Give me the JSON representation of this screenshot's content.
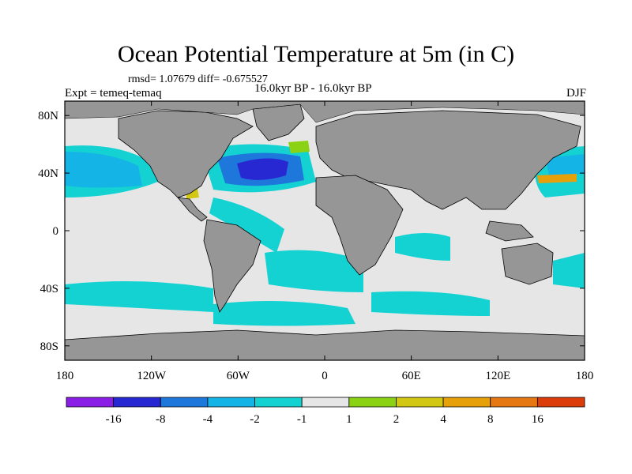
{
  "title": "Ocean Potential Temperature at 5m (in C)",
  "stats": "rmsd= 1.07679  diff= -0.675527",
  "experiment": "Expt = temeq-temaq",
  "period": "16.0kyr BP - 16.0kyr BP",
  "season": "DJF",
  "map": {
    "lon_range": [
      -180,
      180
    ],
    "lat_range": [
      -90,
      90
    ],
    "lon_ticks": [
      {
        "value": -180,
        "label": "180"
      },
      {
        "value": -120,
        "label": "120W"
      },
      {
        "value": -60,
        "label": "60W"
      },
      {
        "value": 0,
        "label": "0"
      },
      {
        "value": 60,
        "label": "60E"
      },
      {
        "value": 120,
        "label": "120E"
      },
      {
        "value": 180,
        "label": "180"
      }
    ],
    "lat_ticks": [
      {
        "value": 80,
        "label": "80N"
      },
      {
        "value": 40,
        "label": "40N"
      },
      {
        "value": 0,
        "label": "0"
      },
      {
        "value": -40,
        "label": "40S"
      },
      {
        "value": -80,
        "label": "80S"
      }
    ],
    "colors": {
      "ocean_background": "#e6e6e6",
      "land": "#969696"
    }
  },
  "colorbar": {
    "colors": [
      "#8a1ee6",
      "#2828d2",
      "#1e78dc",
      "#14b4e6",
      "#14d2d2",
      "#e6e6e6",
      "#8cd214",
      "#d2c814",
      "#e6a00a",
      "#e67814",
      "#dc3c0a"
    ],
    "labels": [
      "-16",
      "-8",
      "-4",
      "-2",
      "-1",
      "1",
      "2",
      "4",
      "8",
      "16"
    ]
  }
}
